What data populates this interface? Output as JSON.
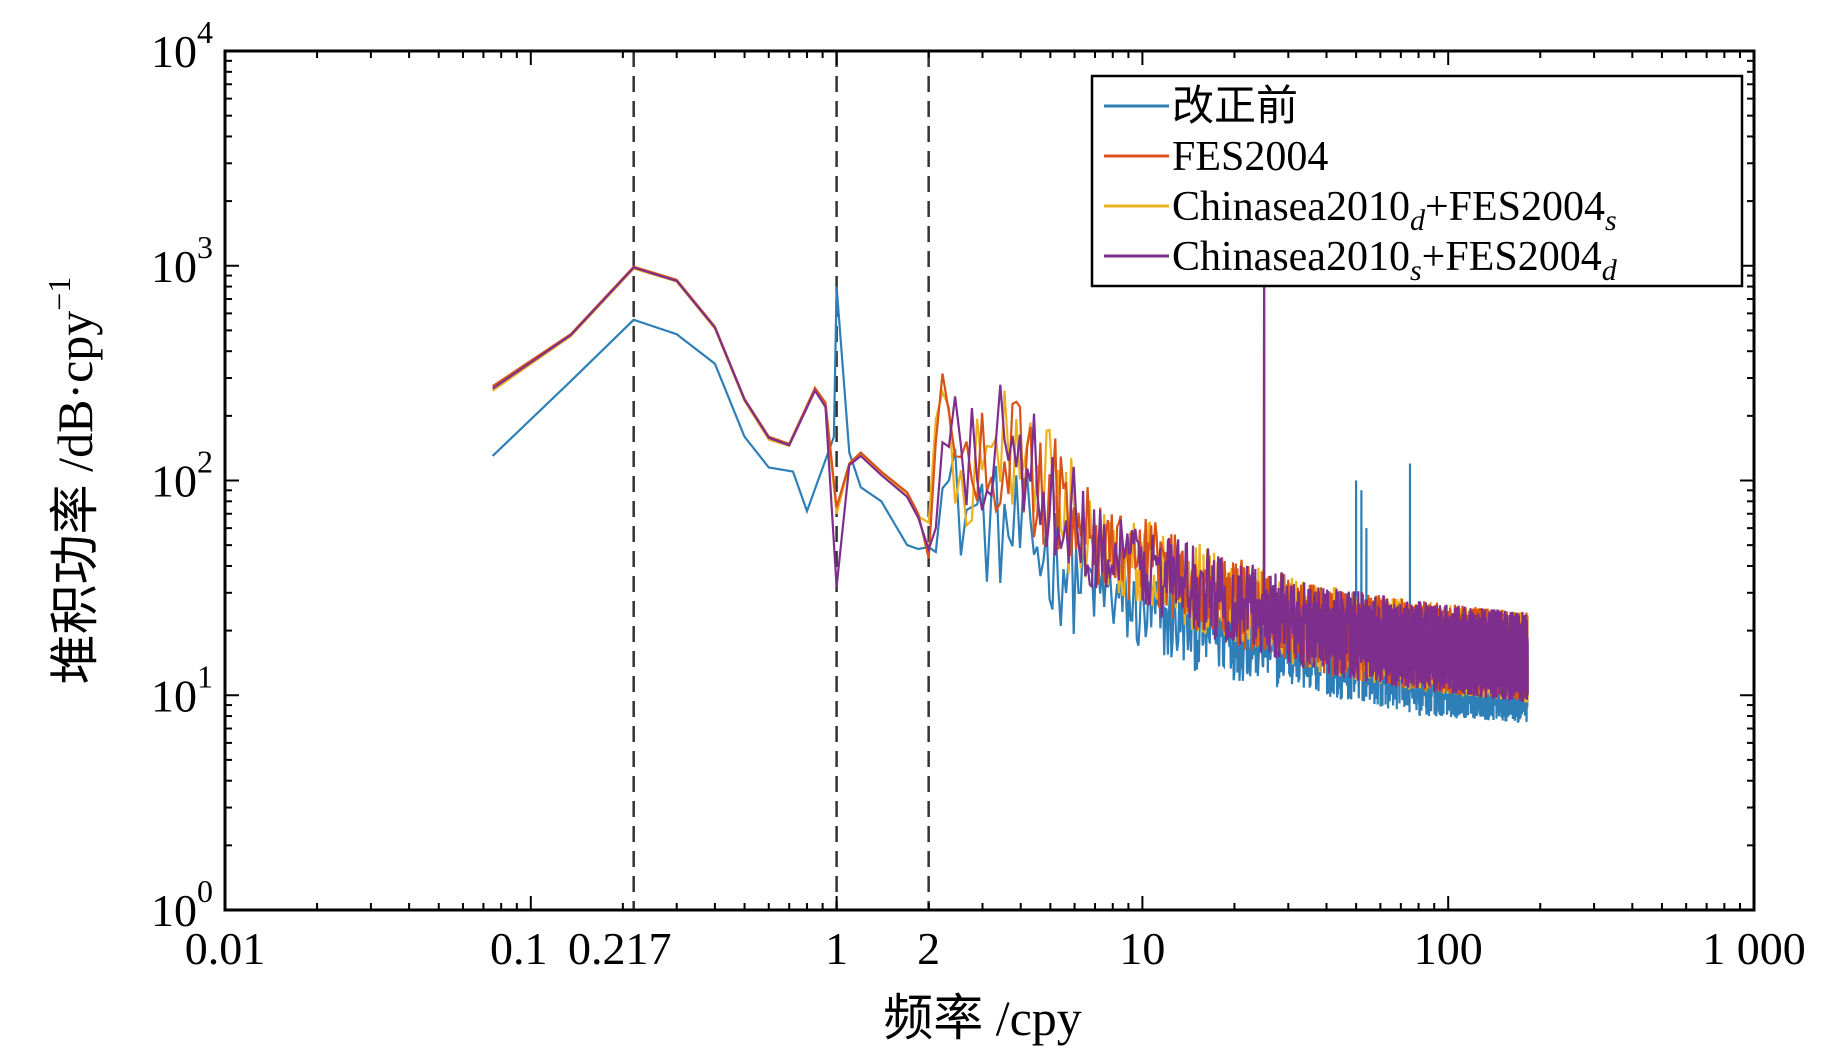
{
  "chart_data": {
    "type": "line",
    "xscale": "log",
    "yscale": "log",
    "xlabel": "频率 /cpy",
    "ylabel": "堆积功率 /dB·cpy",
    "ylabel_sup": "−1",
    "xlim": [
      0.01,
      1000
    ],
    "ylim": [
      1,
      10000
    ],
    "x_ticks": [
      {
        "value": 0.01,
        "label": "0.01"
      },
      {
        "value": 0.1,
        "label": "0.1"
      },
      {
        "value": 0.217,
        "label": "0.217"
      },
      {
        "value": 1,
        "label": "1"
      },
      {
        "value": 2,
        "label": "2"
      },
      {
        "value": 10,
        "label": "10"
      },
      {
        "value": 100,
        "label": "100"
      },
      {
        "value": 1000,
        "label": "1 000"
      }
    ],
    "y_ticks": [
      {
        "value": 1,
        "base": "10",
        "exp": "0"
      },
      {
        "value": 10,
        "base": "10",
        "exp": "1"
      },
      {
        "value": 100,
        "base": "10",
        "exp": "2"
      },
      {
        "value": 1000,
        "base": "10",
        "exp": "3"
      },
      {
        "value": 10000,
        "base": "10",
        "exp": "4"
      }
    ],
    "vlines": [
      0.217,
      1,
      2
    ],
    "legend_position": "top-right",
    "series": [
      {
        "name": "改正前",
        "label_main": "改正前",
        "label_sub1": "",
        "label_mid": "",
        "label_sub2": "",
        "color": "#2e7fb8",
        "key_points": [
          [
            0.075,
            130
          ],
          [
            0.135,
            290
          ],
          [
            0.217,
            560
          ],
          [
            0.3,
            480
          ],
          [
            0.4,
            350
          ],
          [
            0.5,
            160
          ],
          [
            0.6,
            115
          ],
          [
            0.72,
            110
          ],
          [
            0.8,
            72
          ],
          [
            0.98,
            160
          ],
          [
            1.1,
            135
          ],
          [
            1.2,
            93
          ],
          [
            1.0,
            800
          ],
          [
            1.4,
            80
          ],
          [
            1.7,
            50
          ],
          [
            1.85,
            48
          ],
          [
            2.0,
            95
          ],
          [
            2.5,
            78
          ],
          [
            3,
            65
          ],
          [
            4,
            55
          ],
          [
            5,
            45
          ],
          [
            7,
            32
          ],
          [
            10,
            24
          ],
          [
            20,
            19
          ],
          [
            40,
            16
          ],
          [
            80,
            13
          ],
          [
            180,
            12
          ]
        ],
        "peaks": [
          [
            1.0,
            950
          ],
          [
            1.05,
            600
          ],
          [
            25,
            1100
          ],
          [
            50,
            100
          ],
          [
            52,
            90
          ],
          [
            54,
            60
          ],
          [
            75,
            120
          ]
        ]
      },
      {
        "name": "FES2004",
        "label_main": "FES2004",
        "label_sub1": "",
        "label_mid": "",
        "label_sub2": "",
        "color": "#d95319",
        "key_points": [
          [
            0.075,
            275
          ],
          [
            0.135,
            480
          ],
          [
            0.217,
            990
          ],
          [
            0.3,
            860
          ],
          [
            0.4,
            520
          ],
          [
            0.5,
            240
          ],
          [
            0.6,
            160
          ],
          [
            0.7,
            148
          ],
          [
            0.85,
            270
          ],
          [
            0.92,
            230
          ],
          [
            1.0,
            75
          ],
          [
            1.1,
            120
          ],
          [
            1.2,
            135
          ],
          [
            1.4,
            110
          ],
          [
            1.7,
            88
          ],
          [
            1.85,
            70
          ],
          [
            2.0,
            70
          ],
          [
            2.2,
            180
          ],
          [
            2.5,
            120
          ],
          [
            3,
            110
          ],
          [
            3.5,
            140
          ],
          [
            4,
            120
          ],
          [
            5,
            95
          ],
          [
            7,
            52
          ],
          [
            10,
            42
          ],
          [
            20,
            27
          ],
          [
            40,
            20
          ],
          [
            80,
            17
          ],
          [
            180,
            15
          ]
        ],
        "peaks": [
          [
            25,
            800
          ]
        ]
      },
      {
        "name": "Chinasea2010d+FES2004s",
        "label_main": "Chinasea2010",
        "label_sub1": "d",
        "label_mid": "+FES2004",
        "label_sub2": "s",
        "color": "#edb120",
        "key_points": [
          [
            0.075,
            262
          ],
          [
            0.135,
            470
          ],
          [
            0.217,
            970
          ],
          [
            0.3,
            845
          ],
          [
            0.4,
            510
          ],
          [
            0.5,
            235
          ],
          [
            0.6,
            155
          ],
          [
            0.7,
            145
          ],
          [
            0.85,
            265
          ],
          [
            0.92,
            225
          ],
          [
            1.0,
            70
          ],
          [
            1.1,
            118
          ],
          [
            1.2,
            132
          ],
          [
            1.4,
            108
          ],
          [
            1.7,
            85
          ],
          [
            1.85,
            68
          ],
          [
            2.0,
            68
          ],
          [
            2.2,
            190
          ],
          [
            2.5,
            118
          ],
          [
            3,
            108
          ],
          [
            3.5,
            145
          ],
          [
            4,
            118
          ],
          [
            5,
            93
          ],
          [
            7,
            50
          ],
          [
            10,
            41
          ],
          [
            20,
            27
          ],
          [
            40,
            20
          ],
          [
            80,
            17
          ],
          [
            180,
            15
          ]
        ],
        "peaks": [
          [
            25,
            700
          ]
        ]
      },
      {
        "name": "Chinasea2010s+FES2004d",
        "label_main": "Chinasea2010",
        "label_sub1": "s",
        "label_mid": "+FES2004",
        "label_sub2": "d",
        "color": "#7e2f8e",
        "key_points": [
          [
            0.075,
            268
          ],
          [
            0.135,
            475
          ],
          [
            0.217,
            980
          ],
          [
            0.3,
            850
          ],
          [
            0.4,
            515
          ],
          [
            0.5,
            238
          ],
          [
            0.6,
            158
          ],
          [
            0.7,
            146
          ],
          [
            0.85,
            262
          ],
          [
            0.92,
            220
          ],
          [
            1.0,
            32
          ],
          [
            1.1,
            118
          ],
          [
            1.2,
            130
          ],
          [
            1.4,
            106
          ],
          [
            1.7,
            84
          ],
          [
            1.85,
            67
          ],
          [
            2.0,
            60
          ],
          [
            2.2,
            170
          ],
          [
            2.5,
            115
          ],
          [
            3,
            105
          ],
          [
            3.5,
            230
          ],
          [
            4,
            115
          ],
          [
            5,
            92
          ],
          [
            7,
            49
          ],
          [
            10,
            40
          ],
          [
            20,
            27
          ],
          [
            40,
            20
          ],
          [
            80,
            17
          ],
          [
            180,
            15
          ]
        ],
        "peaks": [
          [
            25,
            1100
          ]
        ]
      }
    ]
  }
}
